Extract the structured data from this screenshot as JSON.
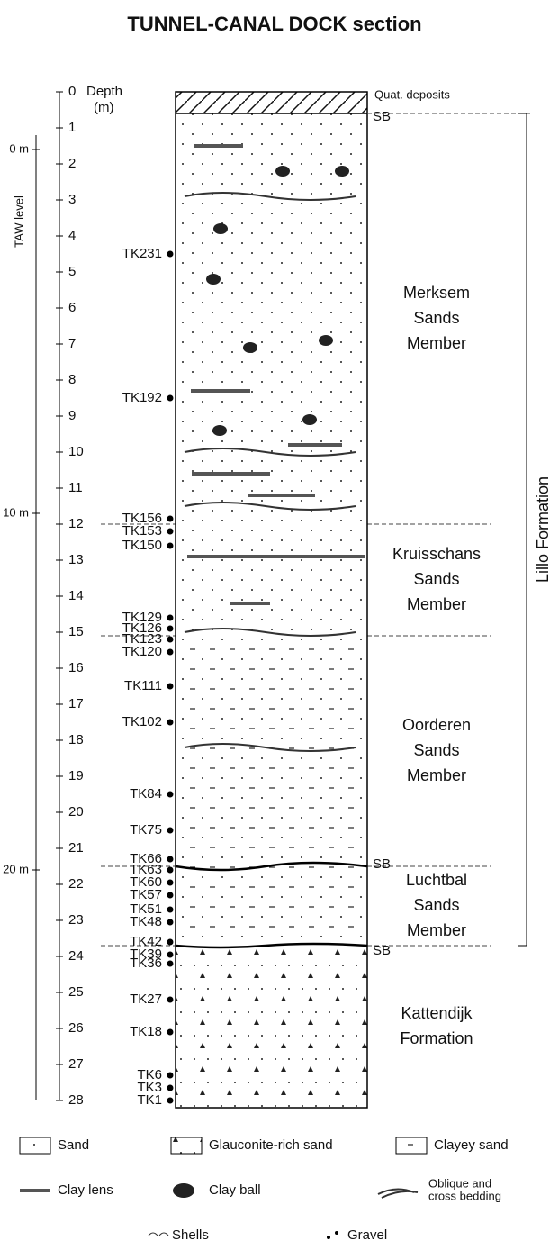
{
  "title": "TUNNEL-CANAL DOCK section",
  "depth_axis": {
    "label": "Depth",
    "unit": "(m)",
    "ticks": [
      0,
      1,
      2,
      3,
      4,
      5,
      6,
      7,
      8,
      9,
      10,
      11,
      12,
      13,
      14,
      15,
      16,
      17,
      18,
      19,
      20,
      21,
      22,
      23,
      24,
      25,
      26,
      27,
      28
    ]
  },
  "taw_axis": {
    "label": "TAW level",
    "ticks": [
      {
        "depth": 1.6,
        "label": "0 m"
      },
      {
        "depth": 11.7,
        "label": "10 m"
      },
      {
        "depth": 21.6,
        "label": "20 m"
      }
    ]
  },
  "samples": [
    {
      "label": "TK231",
      "depth": 4.5
    },
    {
      "label": "TK192",
      "depth": 8.5
    },
    {
      "label": "TK156",
      "depth": 11.85
    },
    {
      "label": "TK153",
      "depth": 12.2
    },
    {
      "label": "TK150",
      "depth": 12.6
    },
    {
      "label": "TK129",
      "depth": 14.6
    },
    {
      "label": "TK126",
      "depth": 14.9
    },
    {
      "label": "TK123",
      "depth": 15.2
    },
    {
      "label": "TK120",
      "depth": 15.55
    },
    {
      "label": "TK111",
      "depth": 16.5
    },
    {
      "label": "TK102",
      "depth": 17.5
    },
    {
      "label": "TK84",
      "depth": 19.5
    },
    {
      "label": "TK75",
      "depth": 20.5
    },
    {
      "label": "TK66",
      "depth": 21.3
    },
    {
      "label": "TK63",
      "depth": 21.6
    },
    {
      "label": "TK60",
      "depth": 21.95
    },
    {
      "label": "TK57",
      "depth": 22.3
    },
    {
      "label": "TK51",
      "depth": 22.7
    },
    {
      "label": "TK48",
      "depth": 23.05
    },
    {
      "label": "TK42",
      "depth": 23.6
    },
    {
      "label": "TK39",
      "depth": 23.95
    },
    {
      "label": "TK36",
      "depth": 24.2
    },
    {
      "label": "TK27",
      "depth": 25.2
    },
    {
      "label": "TK18",
      "depth": 26.1
    },
    {
      "label": "TK6",
      "depth": 27.3
    },
    {
      "label": "TK3",
      "depth": 27.65
    },
    {
      "label": "TK1",
      "depth": 28.0
    }
  ],
  "units": [
    {
      "name": [
        "Quat. deposits"
      ],
      "top": 0,
      "bottom": 0.6
    },
    {
      "name": [
        "Merksem",
        "Sands",
        "Member"
      ],
      "top": 0.6,
      "bottom": 12
    },
    {
      "name": [
        "Kruisschans",
        "Sands",
        "Member"
      ],
      "top": 12,
      "bottom": 15.1
    },
    {
      "name": [
        "Oorderen",
        "Sands",
        "Member"
      ],
      "top": 15.1,
      "bottom": 21.5
    },
    {
      "name": [
        "Luchtbal",
        "Sands",
        "Member"
      ],
      "top": 21.5,
      "bottom": 23.7
    },
    {
      "name": [
        "Kattendijk",
        "Formation"
      ],
      "top": 23.7,
      "bottom": 28.2
    }
  ],
  "sequence_boundaries": [
    {
      "label": "SB",
      "depth": 0.7
    },
    {
      "label": "SB",
      "depth": 21.45
    },
    {
      "label": "SB",
      "depth": 23.85
    }
  ],
  "formation": {
    "label": "Lillo Formation",
    "top": 0.6,
    "bottom": 23.7
  },
  "legend": [
    {
      "label": "Sand"
    },
    {
      "label": "Glauconite-rich sand"
    },
    {
      "label": "Clayey sand"
    },
    {
      "label": "Clay lens"
    },
    {
      "label": "Clay ball"
    },
    {
      "label": [
        "Oblique and",
        "cross bedding"
      ]
    },
    {
      "label": "Shells"
    },
    {
      "label": "Gravel"
    }
  ]
}
